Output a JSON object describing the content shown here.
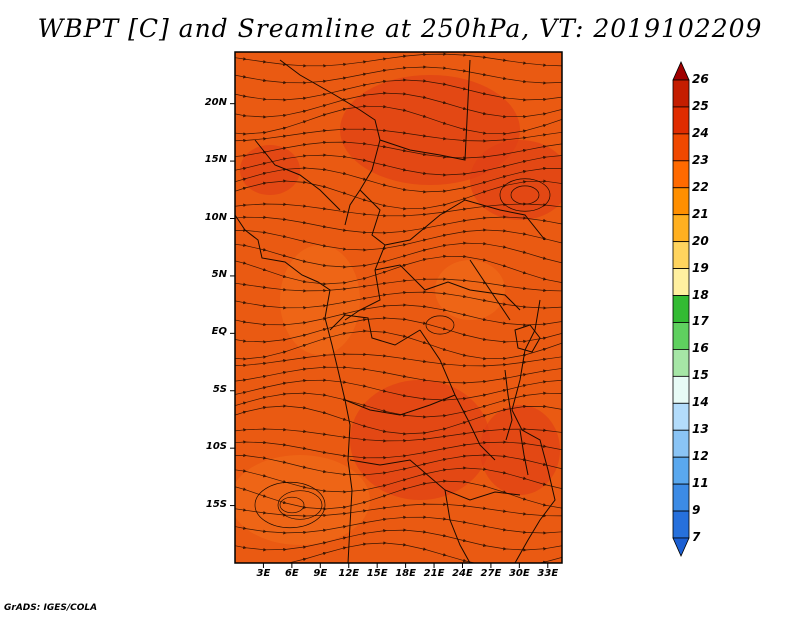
{
  "title": "WBPT [C] and Sreamline at 250hPa, VT: 2019102209",
  "credit": "GrADS: IGES/COLA",
  "map": {
    "lat_labels": [
      "20N",
      "15N",
      "10N",
      "5N",
      "EQ",
      "5S",
      "10S",
      "15S"
    ],
    "lon_labels": [
      "3E",
      "6E",
      "9E",
      "12E",
      "15E",
      "18E",
      "21E",
      "24E",
      "27E",
      "30E",
      "33E"
    ],
    "lon_range": [
      0,
      34.5
    ],
    "lat_range": [
      -20,
      24.5
    ]
  },
  "colorbar": {
    "labels": [
      "26",
      "25",
      "24",
      "23",
      "22",
      "21",
      "20",
      "19",
      "18",
      "17",
      "16",
      "15",
      "14",
      "13",
      "12",
      "11",
      "9",
      "7"
    ],
    "colors": [
      "#a00000",
      "#c41d00",
      "#e02c00",
      "#f04800",
      "#ff6a00",
      "#ff8f00",
      "#ffb020",
      "#ffd45e",
      "#fff0a0",
      "#33bb33",
      "#5fd05f",
      "#a6e6a6",
      "#e8fbf6",
      "#b3dcfb",
      "#8ac4f5",
      "#5aa8ee",
      "#3c8be5",
      "#2670dc",
      "#1b5fd3"
    ]
  },
  "field": {
    "background": "#ea5a12",
    "hot_color": "#e04015",
    "warm_color": "#f06a18"
  }
}
